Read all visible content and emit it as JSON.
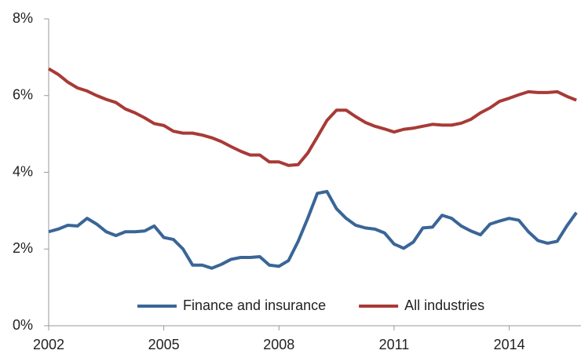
{
  "chart_data": {
    "type": "line",
    "x": [
      2002,
      2002.25,
      2002.5,
      2002.75,
      2003,
      2003.25,
      2003.5,
      2003.75,
      2004,
      2004.25,
      2004.5,
      2004.75,
      2005,
      2005.25,
      2005.5,
      2005.75,
      2006,
      2006.25,
      2006.5,
      2006.75,
      2007,
      2007.25,
      2007.5,
      2007.75,
      2008,
      2008.25,
      2008.5,
      2008.75,
      2009,
      2009.25,
      2009.5,
      2009.75,
      2010,
      2010.25,
      2010.5,
      2010.75,
      2011,
      2011.25,
      2011.5,
      2011.75,
      2012,
      2012.25,
      2012.5,
      2012.75,
      2013,
      2013.25,
      2013.5,
      2013.75,
      2014,
      2014.25,
      2014.5,
      2014.75,
      2015,
      2015.25,
      2015.5,
      2015.75
    ],
    "series": [
      {
        "name": "Finance and insurance",
        "color": "#3a6597",
        "values": [
          2.45,
          2.52,
          2.62,
          2.6,
          2.8,
          2.65,
          2.45,
          2.35,
          2.45,
          2.45,
          2.47,
          2.6,
          2.3,
          2.25,
          2.0,
          1.58,
          1.58,
          1.5,
          1.6,
          1.73,
          1.78,
          1.78,
          1.8,
          1.58,
          1.55,
          1.7,
          2.2,
          2.8,
          3.45,
          3.5,
          3.05,
          2.8,
          2.62,
          2.55,
          2.52,
          2.42,
          2.13,
          2.02,
          2.18,
          2.55,
          2.57,
          2.88,
          2.8,
          2.6,
          2.47,
          2.37,
          2.65,
          2.73,
          2.8,
          2.75,
          2.45,
          2.22,
          2.15,
          2.2,
          2.6,
          2.95
        ]
      },
      {
        "name": "All industries",
        "color": "#a83a36",
        "values": [
          6.7,
          6.55,
          6.35,
          6.2,
          6.12,
          6.0,
          5.9,
          5.82,
          5.65,
          5.55,
          5.42,
          5.27,
          5.22,
          5.07,
          5.02,
          5.02,
          4.97,
          4.9,
          4.8,
          4.67,
          4.55,
          4.45,
          4.45,
          4.27,
          4.27,
          4.18,
          4.2,
          4.5,
          4.92,
          5.35,
          5.62,
          5.62,
          5.45,
          5.3,
          5.2,
          5.13,
          5.05,
          5.12,
          5.15,
          5.2,
          5.25,
          5.23,
          5.23,
          5.28,
          5.38,
          5.55,
          5.68,
          5.85,
          5.93,
          6.02,
          6.1,
          6.08,
          6.08,
          6.1,
          5.98,
          5.88
        ]
      }
    ],
    "xlim": [
      2002,
      2015.87
    ],
    "xticks": [
      2002,
      2005,
      2008,
      2011,
      2014
    ],
    "ylim": [
      0,
      8
    ],
    "yticks": [
      {
        "value": 0,
        "label": "0%"
      },
      {
        "value": 2,
        "label": "2%"
      },
      {
        "value": 4,
        "label": "4%"
      },
      {
        "value": 6,
        "label": "6%"
      },
      {
        "value": 8,
        "label": "8%"
      }
    ],
    "legend": "bottom"
  }
}
